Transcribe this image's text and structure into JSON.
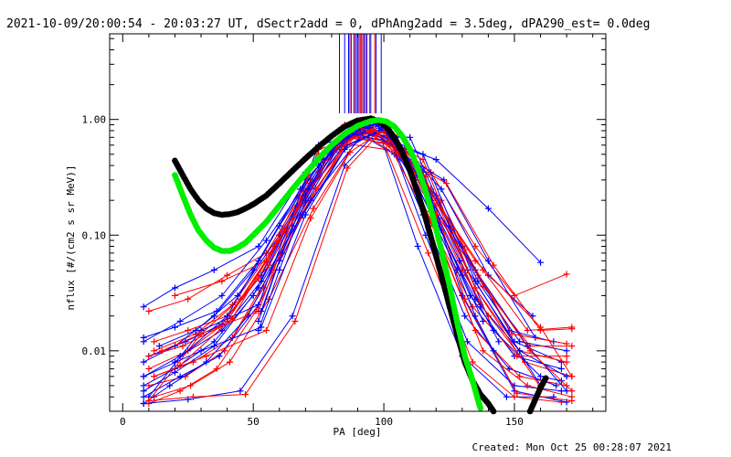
{
  "chart_data": {
    "type": "line",
    "title": "2021-10-09/20:00:54 - 20:03:27 UT, dSectr2add = 0, dPhAng2add = 3.5deg, dPA290_est=  0.0deg",
    "xlabel": "PA [deg]",
    "ylabel": "nflux [#/(cm2 s sr MeV)]",
    "footer": "Created: Mon Oct 25 00:28:07 2021",
    "xlim": [
      -5,
      185
    ],
    "ylim": [
      0.003,
      5.5
    ],
    "yscale": "log",
    "grid": false,
    "x_ticks": [
      0,
      50,
      100,
      150
    ],
    "x_tick_labels": [
      "0",
      "50",
      "100",
      "150"
    ],
    "y_ticks": [
      0.01,
      0.1,
      1.0
    ],
    "y_tick_labels": [
      "0.01",
      "0.10",
      "1.00"
    ],
    "colors": {
      "red": "#ff0000",
      "blue": "#0000ff",
      "black": "#000000",
      "green": "#00ee00"
    },
    "series": [
      {
        "color": "#0000ff",
        "x": [
          8,
          20,
          35,
          52,
          70,
          90,
          105,
          120,
          140,
          160
        ],
        "y": [
          0.024,
          0.035,
          0.05,
          0.08,
          0.35,
          0.85,
          0.6,
          0.45,
          0.17,
          0.058
        ]
      },
      {
        "color": "#ff0000",
        "x": [
          10,
          25,
          40,
          55,
          72,
          88,
          102,
          118,
          135,
          150,
          170
        ],
        "y": [
          0.022,
          0.028,
          0.045,
          0.07,
          0.3,
          0.88,
          0.7,
          0.35,
          0.08,
          0.03,
          0.046
        ]
      },
      {
        "color": "#0000ff",
        "x": [
          8,
          22,
          38,
          55,
          75,
          92,
          108,
          122,
          140,
          157
        ],
        "y": [
          0.012,
          0.018,
          0.03,
          0.09,
          0.4,
          0.9,
          0.55,
          0.25,
          0.045,
          0.02
        ]
      },
      {
        "color": "#ff0000",
        "x": [
          12,
          28,
          42,
          58,
          75,
          90,
          105,
          120,
          138,
          155,
          172
        ],
        "y": [
          0.01,
          0.014,
          0.025,
          0.08,
          0.35,
          0.85,
          0.55,
          0.2,
          0.05,
          0.015,
          0.016
        ]
      },
      {
        "color": "#0000ff",
        "x": [
          8,
          20,
          35,
          50,
          68,
          85,
          100,
          115,
          132,
          150,
          168
        ],
        "y": [
          0.008,
          0.011,
          0.02,
          0.05,
          0.25,
          0.75,
          0.9,
          0.3,
          0.05,
          0.012,
          0.008
        ]
      },
      {
        "color": "#ff0000",
        "x": [
          10,
          25,
          40,
          55,
          72,
          88,
          103,
          118,
          135,
          152,
          170
        ],
        "y": [
          0.007,
          0.01,
          0.018,
          0.06,
          0.28,
          0.8,
          0.75,
          0.25,
          0.035,
          0.01,
          0.008
        ]
      },
      {
        "color": "#0000ff",
        "x": [
          8,
          22,
          38,
          53,
          70,
          87,
          102,
          117,
          133,
          150,
          168
        ],
        "y": [
          0.006,
          0.009,
          0.015,
          0.04,
          0.22,
          0.7,
          0.85,
          0.2,
          0.03,
          0.009,
          0.007
        ]
      },
      {
        "color": "#ff0000",
        "x": [
          12,
          27,
          42,
          57,
          74,
          90,
          105,
          120,
          137,
          154,
          172
        ],
        "y": [
          0.006,
          0.008,
          0.013,
          0.05,
          0.25,
          0.78,
          0.7,
          0.18,
          0.025,
          0.008,
          0.006
        ]
      },
      {
        "color": "#0000ff",
        "x": [
          8,
          20,
          35,
          50,
          67,
          84,
          100,
          115,
          131,
          148,
          166
        ],
        "y": [
          0.005,
          0.007,
          0.012,
          0.03,
          0.18,
          0.65,
          0.88,
          0.15,
          0.02,
          0.007,
          0.005
        ]
      },
      {
        "color": "#ff0000",
        "x": [
          10,
          24,
          39,
          54,
          71,
          88,
          104,
          119,
          135,
          152,
          170
        ],
        "y": [
          0.005,
          0.006,
          0.01,
          0.035,
          0.2,
          0.72,
          0.65,
          0.12,
          0.015,
          0.006,
          0.005
        ]
      },
      {
        "color": "#0000ff",
        "x": [
          8,
          22,
          37,
          52,
          69,
          86,
          101,
          116,
          132,
          150,
          168
        ],
        "y": [
          0.004,
          0.006,
          0.009,
          0.025,
          0.15,
          0.6,
          0.82,
          0.1,
          0.012,
          0.005,
          0.0045
        ]
      },
      {
        "color": "#ff0000",
        "x": [
          12,
          26,
          41,
          56,
          73,
          90,
          106,
          121,
          138,
          155,
          172
        ],
        "y": [
          0.004,
          0.005,
          0.008,
          0.028,
          0.17,
          0.68,
          0.6,
          0.09,
          0.01,
          0.005,
          0.004
        ]
      },
      {
        "color": "#0000ff",
        "x": [
          8,
          18,
          32,
          48,
          65,
          82,
          98,
          113,
          130,
          147,
          165
        ],
        "y": [
          0.0035,
          0.005,
          0.008,
          0.02,
          0.12,
          0.55,
          0.8,
          0.08,
          0.009,
          0.004,
          0.004
        ]
      },
      {
        "color": "#ff0000",
        "x": [
          10,
          22,
          36,
          51,
          68,
          85,
          101,
          117,
          134,
          150,
          168
        ],
        "y": [
          0.0035,
          0.0045,
          0.007,
          0.022,
          0.14,
          0.62,
          0.55,
          0.07,
          0.008,
          0.004,
          0.0036
        ]
      },
      {
        "color": "#0000ff",
        "x": [
          8,
          20,
          36,
          52,
          70,
          88,
          104,
          120,
          136,
          152,
          170
        ],
        "y": [
          0.013,
          0.016,
          0.022,
          0.06,
          0.3,
          0.82,
          0.5,
          0.22,
          0.04,
          0.012,
          0.01
        ]
      },
      {
        "color": "#ff0000",
        "x": [
          12,
          25,
          40,
          56,
          73,
          90,
          106,
          122,
          138,
          156,
          172
        ],
        "y": [
          0.012,
          0.015,
          0.02,
          0.055,
          0.27,
          0.8,
          0.48,
          0.2,
          0.036,
          0.011,
          0.011
        ]
      },
      {
        "color": "#0000ff",
        "x": [
          10,
          24,
          38,
          53,
          70,
          87,
          103,
          118,
          135,
          152,
          170
        ],
        "y": [
          0.009,
          0.012,
          0.017,
          0.045,
          0.24,
          0.77,
          0.62,
          0.16,
          0.028,
          0.01,
          0.006
        ]
      },
      {
        "color": "#ff0000",
        "x": [
          10,
          23,
          37,
          52,
          69,
          86,
          102,
          117,
          134,
          151,
          170
        ],
        "y": [
          0.009,
          0.011,
          0.016,
          0.042,
          0.22,
          0.74,
          0.6,
          0.14,
          0.024,
          0.009,
          0.009
        ]
      },
      {
        "color": "#0000ff",
        "x": [
          14,
          28,
          44,
          60,
          77,
          92,
          107,
          123,
          140,
          158
        ],
        "y": [
          0.011,
          0.015,
          0.03,
          0.1,
          0.45,
          0.9,
          0.5,
          0.3,
          0.06,
          0.013
        ]
      },
      {
        "color": "#ff0000",
        "x": [
          15,
          30,
          45,
          60,
          77,
          92,
          108,
          124,
          142,
          160,
          172
        ],
        "y": [
          0.01,
          0.014,
          0.028,
          0.09,
          0.42,
          0.87,
          0.45,
          0.28,
          0.055,
          0.015,
          0.0155
        ]
      },
      {
        "color": "#0000ff",
        "x": [
          8,
          20,
          35,
          52,
          72,
          92,
          110,
          125,
          142,
          160,
          168
        ],
        "y": [
          0.0045,
          0.0065,
          0.011,
          0.035,
          0.2,
          0.75,
          0.7,
          0.12,
          0.015,
          0.006,
          0.0055
        ]
      },
      {
        "color": "#ff0000",
        "x": [
          20,
          38,
          55,
          75,
          95,
          115,
          135,
          160,
          172
        ],
        "y": [
          0.03,
          0.04,
          0.06,
          0.5,
          0.9,
          0.3,
          0.06,
          0.016,
          0.006
        ]
      },
      {
        "color": "#0000ff",
        "x": [
          10,
          30,
          52,
          75,
          95,
          115,
          135,
          160
        ],
        "y": [
          0.004,
          0.015,
          0.025,
          0.6,
          0.8,
          0.5,
          0.04,
          0.005
        ]
      },
      {
        "color": "#ff0000",
        "x": [
          10,
          30,
          52,
          75,
          95,
          115,
          135,
          160
        ],
        "y": [
          0.0037,
          0.014,
          0.022,
          0.55,
          0.78,
          0.45,
          0.035,
          0.0048
        ]
      },
      {
        "color": "#0000ff",
        "x": [
          8,
          25,
          45,
          65,
          85,
          100,
          115,
          130,
          150,
          170
        ],
        "y": [
          0.0035,
          0.0038,
          0.0045,
          0.02,
          0.4,
          0.9,
          0.35,
          0.03,
          0.0045,
          0.0036
        ]
      },
      {
        "color": "#ff0000",
        "x": [
          10,
          27,
          47,
          66,
          86,
          101,
          116,
          131,
          151,
          172
        ],
        "y": [
          0.0037,
          0.004,
          0.0042,
          0.018,
          0.38,
          0.88,
          0.32,
          0.028,
          0.0043,
          0.0037
        ]
      },
      {
        "color": "#0000ff",
        "x": [
          8,
          30,
          53,
          70,
          85,
          100,
          118,
          135,
          155,
          170
        ],
        "y": [
          0.006,
          0.01,
          0.016,
          0.15,
          0.55,
          0.85,
          0.2,
          0.05,
          0.011,
          0.0045
        ]
      },
      {
        "color": "#ff0000",
        "x": [
          12,
          32,
          55,
          72,
          87,
          100,
          118,
          136,
          156,
          172
        ],
        "y": [
          0.006,
          0.009,
          0.015,
          0.14,
          0.52,
          0.82,
          0.18,
          0.045,
          0.01,
          0.0045
        ]
      },
      {
        "color": "#0000ff",
        "x": [
          20,
          40,
          60,
          80,
          95,
          112,
          130,
          148,
          165
        ],
        "y": [
          0.008,
          0.02,
          0.12,
          0.6,
          0.85,
          0.4,
          0.08,
          0.015,
          0.012
        ]
      },
      {
        "color": "#ff0000",
        "x": [
          22,
          42,
          62,
          82,
          96,
          113,
          131,
          149,
          170
        ],
        "y": [
          0.0075,
          0.019,
          0.11,
          0.58,
          0.82,
          0.37,
          0.075,
          0.014,
          0.0115
        ]
      },
      {
        "color": "#0000ff",
        "x": [
          52,
          60,
          70,
          80,
          90,
          97,
          105,
          112,
          120,
          128,
          135,
          142
        ],
        "y": [
          0.015,
          0.05,
          0.2,
          0.5,
          0.8,
          0.9,
          0.6,
          0.3,
          0.12,
          0.05,
          0.02,
          0.01
        ]
      },
      {
        "color": "#0000ff",
        "x": [
          52,
          60,
          70,
          80,
          90,
          97,
          105,
          113,
          121,
          129,
          137,
          144
        ],
        "y": [
          0.018,
          0.06,
          0.22,
          0.55,
          0.82,
          0.92,
          0.62,
          0.33,
          0.14,
          0.06,
          0.024,
          0.012
        ]
      },
      {
        "color": "#0000ff",
        "x": [
          53,
          61,
          71,
          81,
          91,
          98,
          106,
          114,
          122,
          130,
          138
        ],
        "y": [
          0.022,
          0.07,
          0.25,
          0.6,
          0.85,
          0.93,
          0.58,
          0.3,
          0.11,
          0.045,
          0.018
        ]
      },
      {
        "color": "#ff0000",
        "x": [
          85,
          90,
          95,
          100,
          110,
          120,
          130,
          140
        ],
        "y": [
          0.9,
          0.85,
          0.8,
          0.78,
          0.4,
          0.15,
          0.05,
          0.02
        ]
      }
    ],
    "curves": [
      {
        "color": "#000000",
        "x": [
          20,
          23,
          26,
          29,
          32,
          35,
          38,
          41,
          44,
          47,
          50,
          55,
          60,
          65,
          70,
          75,
          80,
          85,
          90,
          95,
          98,
          101,
          104,
          107,
          110,
          113,
          116,
          119,
          122,
          125,
          128,
          131,
          134,
          137,
          140,
          142
        ],
        "y": [
          0.44,
          0.33,
          0.25,
          0.2,
          0.17,
          0.155,
          0.15,
          0.152,
          0.158,
          0.17,
          0.185,
          0.22,
          0.28,
          0.36,
          0.46,
          0.58,
          0.72,
          0.87,
          0.98,
          1.02,
          0.97,
          0.86,
          0.7,
          0.52,
          0.36,
          0.23,
          0.14,
          0.08,
          0.045,
          0.025,
          0.014,
          0.008,
          0.0055,
          0.0042,
          0.0035,
          0.003
        ]
      },
      {
        "color": "#000000",
        "x": [
          156,
          158,
          160,
          162
        ],
        "y": [
          0.003,
          0.0038,
          0.0048,
          0.0058
        ]
      },
      {
        "color": "#00ee00",
        "x": [
          20,
          23,
          26,
          29,
          32,
          35,
          38,
          41,
          44,
          47,
          50,
          55,
          60,
          65,
          70,
          75,
          80,
          85,
          90,
          95,
          98,
          101,
          104,
          107,
          110,
          113,
          116,
          119,
          122,
          125,
          128,
          131,
          134,
          136,
          137
        ],
        "y": [
          0.33,
          0.22,
          0.15,
          0.11,
          0.09,
          0.078,
          0.073,
          0.073,
          0.078,
          0.086,
          0.1,
          0.13,
          0.18,
          0.25,
          0.34,
          0.46,
          0.6,
          0.75,
          0.88,
          0.97,
          0.99,
          0.96,
          0.87,
          0.72,
          0.55,
          0.38,
          0.24,
          0.14,
          0.075,
          0.038,
          0.018,
          0.009,
          0.0055,
          0.0038,
          0.0032
        ]
      }
    ],
    "vertical_markers": [
      {
        "color": "#0000ff",
        "x": [
          83,
          85,
          86.5,
          87.5,
          88.5,
          89.5,
          90.5,
          91.5,
          92.5,
          93.5,
          95,
          97,
          99
        ]
      },
      {
        "color": "#ff0000",
        "x": [
          87,
          89,
          90,
          91,
          92,
          93,
          94.5,
          96.5
        ]
      }
    ]
  }
}
